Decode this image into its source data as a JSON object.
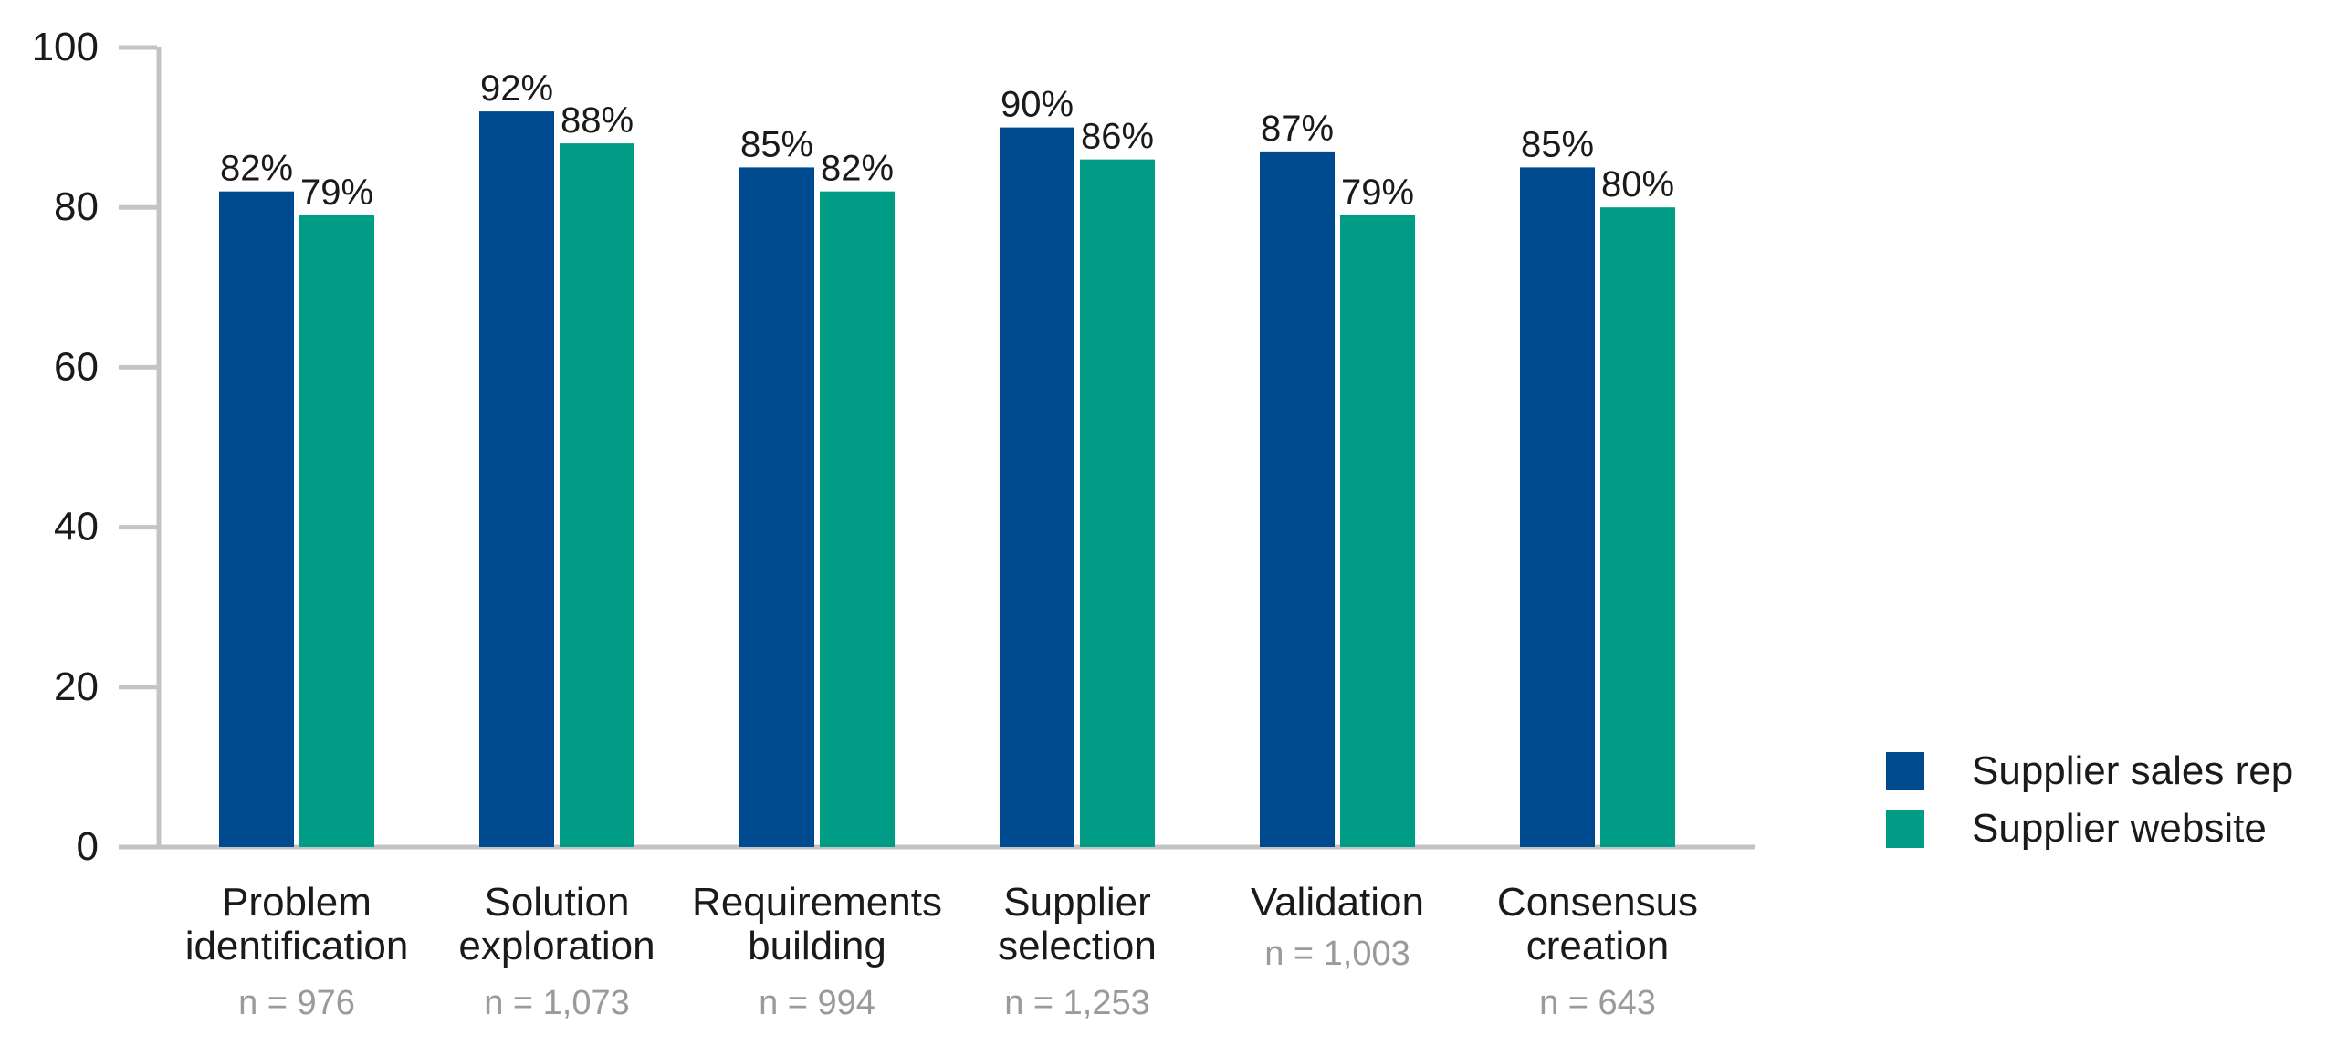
{
  "chart_data": {
    "type": "bar",
    "title": "",
    "xlabel": "",
    "ylabel": "",
    "ylim": [
      0,
      100
    ],
    "yticks": [
      0,
      20,
      40,
      60,
      80,
      100
    ],
    "grid": false,
    "legend_position": "bottom-right",
    "categories": [
      {
        "lines": [
          "Problem",
          "identification"
        ],
        "n": "n = 976"
      },
      {
        "lines": [
          "Solution",
          "exploration"
        ],
        "n": "n = 1,073"
      },
      {
        "lines": [
          "Requirements",
          "building"
        ],
        "n": "n = 994"
      },
      {
        "lines": [
          "Supplier",
          "selection"
        ],
        "n": "n = 1,253"
      },
      {
        "lines": [
          "Validation"
        ],
        "n": "n = 1,003"
      },
      {
        "lines": [
          "Consensus",
          "creation"
        ],
        "n": "n = 643"
      }
    ],
    "series": [
      {
        "name": "Supplier sales rep",
        "color": "#004a8f",
        "values": [
          82,
          92,
          85,
          90,
          87,
          85
        ],
        "labels": [
          "82%",
          "92%",
          "85%",
          "90%",
          "87%",
          "85%"
        ]
      },
      {
        "name": "Supplier website",
        "color": "#009c85",
        "values": [
          79,
          88,
          82,
          86,
          79,
          80
        ],
        "labels": [
          "79%",
          "88%",
          "82%",
          "86%",
          "79%",
          "80%"
        ]
      }
    ],
    "axis_color": "#c4c4c4"
  }
}
